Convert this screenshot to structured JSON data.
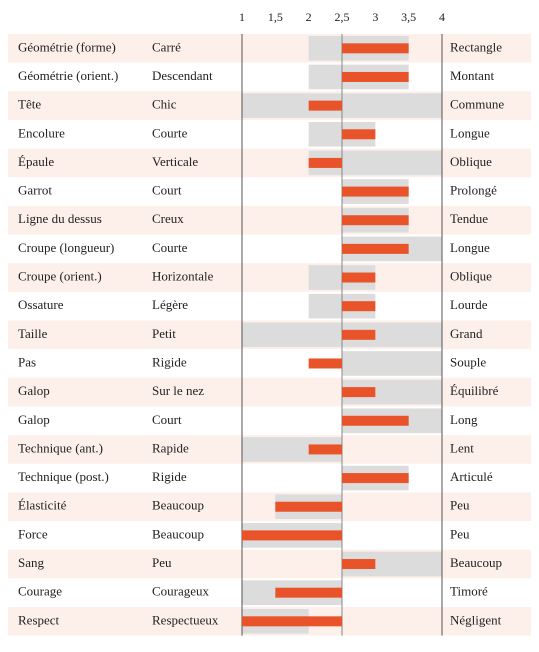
{
  "chart_data": {
    "type": "range-profile",
    "categories": [
      "Géométrie (forme)",
      "Géométrie (orient.)",
      "Tête",
      "Encolure",
      "Épaule",
      "Garrot",
      "Ligne du dessus",
      "Croupe (longueur)",
      "Croupe (orient.)",
      "Ossature",
      "Taille",
      "Pas",
      "Galop",
      "Galop",
      "Technique (ant.)",
      "Technique (post.)",
      "Élasticité",
      "Force",
      "Sang",
      "Courage",
      "Respect"
    ],
    "low_labels": [
      "Carré",
      "Descendant",
      "Chic",
      "Courte",
      "Verticale",
      "Court",
      "Creux",
      "Courte",
      "Horizontale",
      "Légère",
      "Petit",
      "Rigide",
      "Sur le nez",
      "Court",
      "Rapide",
      "Rigide",
      "Beaucoup",
      "Beaucoup",
      "Peu",
      "Courageux",
      "Respectueux"
    ],
    "high_labels": [
      "Rectangle",
      "Montant",
      "Commune",
      "Longue",
      "Oblique",
      "Prolongé",
      "Tendue",
      "Longue",
      "Oblique",
      "Lourde",
      "Grand",
      "Souple",
      "Équilibré",
      "Long",
      "Lent",
      "Articulé",
      "Peu",
      "Peu",
      "Beaucoup",
      "Timoré",
      "Négligent"
    ],
    "range_low": [
      2,
      2,
      1,
      2,
      2,
      2.5,
      2.5,
      2.5,
      2,
      2,
      1,
      2.5,
      2.5,
      2.5,
      1,
      2.5,
      1.5,
      1,
      2.5,
      1,
      1
    ],
    "range_high": [
      3.5,
      3.5,
      4,
      3,
      4,
      3.5,
      3.5,
      4,
      3,
      3,
      4,
      4,
      4,
      4,
      2.5,
      3.5,
      2.5,
      2.5,
      4,
      2.5,
      2
    ],
    "values": [
      3.5,
      3.5,
      2,
      3,
      2,
      3.5,
      3.5,
      3.5,
      3,
      3,
      3,
      2,
      3,
      3.5,
      2,
      3.5,
      1.5,
      1,
      3,
      1.5,
      1
    ],
    "reference_line": 2.5,
    "color": "#e8532a",
    "range_color": "#dcdcdc",
    "label_color": "#24468a",
    "xlim": [
      1,
      4
    ],
    "xticks": [
      1,
      {
        "value": 1.5,
        "label": "1,5"
      },
      2,
      {
        "value": 2.5,
        "label": "2,5"
      },
      3,
      {
        "value": 3.5,
        "label": "3,5"
      },
      4
    ]
  }
}
